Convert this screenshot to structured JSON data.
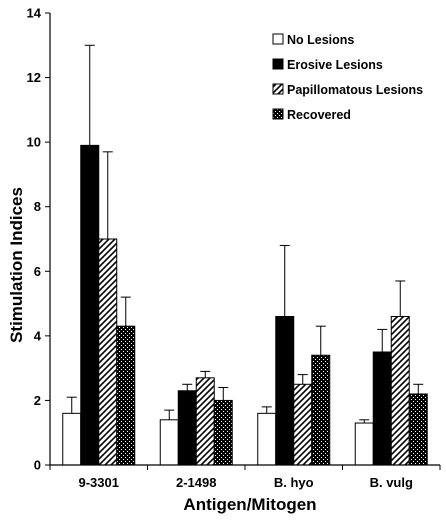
{
  "chart_data": {
    "type": "bar",
    "title": "",
    "xlabel": "Antigen/Mitogen",
    "ylabel": "Stimulation Indices",
    "ylim": [
      0,
      14
    ],
    "yticks": [
      "0",
      "2",
      "4",
      "6",
      "8",
      "10",
      "12",
      "14"
    ],
    "categories": [
      "9-3301",
      "2-1498",
      "B. hyo",
      "B. vulg"
    ],
    "legend_position": "top-right",
    "grid": false,
    "series": [
      {
        "name": "No Lesions",
        "fill": "white",
        "color": "#ffffff",
        "values": [
          1.6,
          1.4,
          1.6,
          1.3
        ],
        "errors": [
          0.5,
          0.3,
          0.2,
          0.1
        ]
      },
      {
        "name": "Erosive Lesions",
        "fill": "solid",
        "color": "#000000",
        "values": [
          9.9,
          2.3,
          4.6,
          3.5
        ],
        "errors": [
          3.1,
          0.2,
          2.2,
          0.7
        ]
      },
      {
        "name": "Papillomatous Lesions",
        "fill": "diagonal-hatch",
        "color": "#000000",
        "values": [
          7.0,
          2.7,
          2.5,
          4.6
        ],
        "errors": [
          2.7,
          0.2,
          0.3,
          1.1
        ]
      },
      {
        "name": "Recovered",
        "fill": "dotted",
        "color": "#000000",
        "values": [
          4.3,
          2.0,
          3.4,
          2.2
        ],
        "errors": [
          0.9,
          0.4,
          0.9,
          0.3
        ]
      }
    ]
  }
}
